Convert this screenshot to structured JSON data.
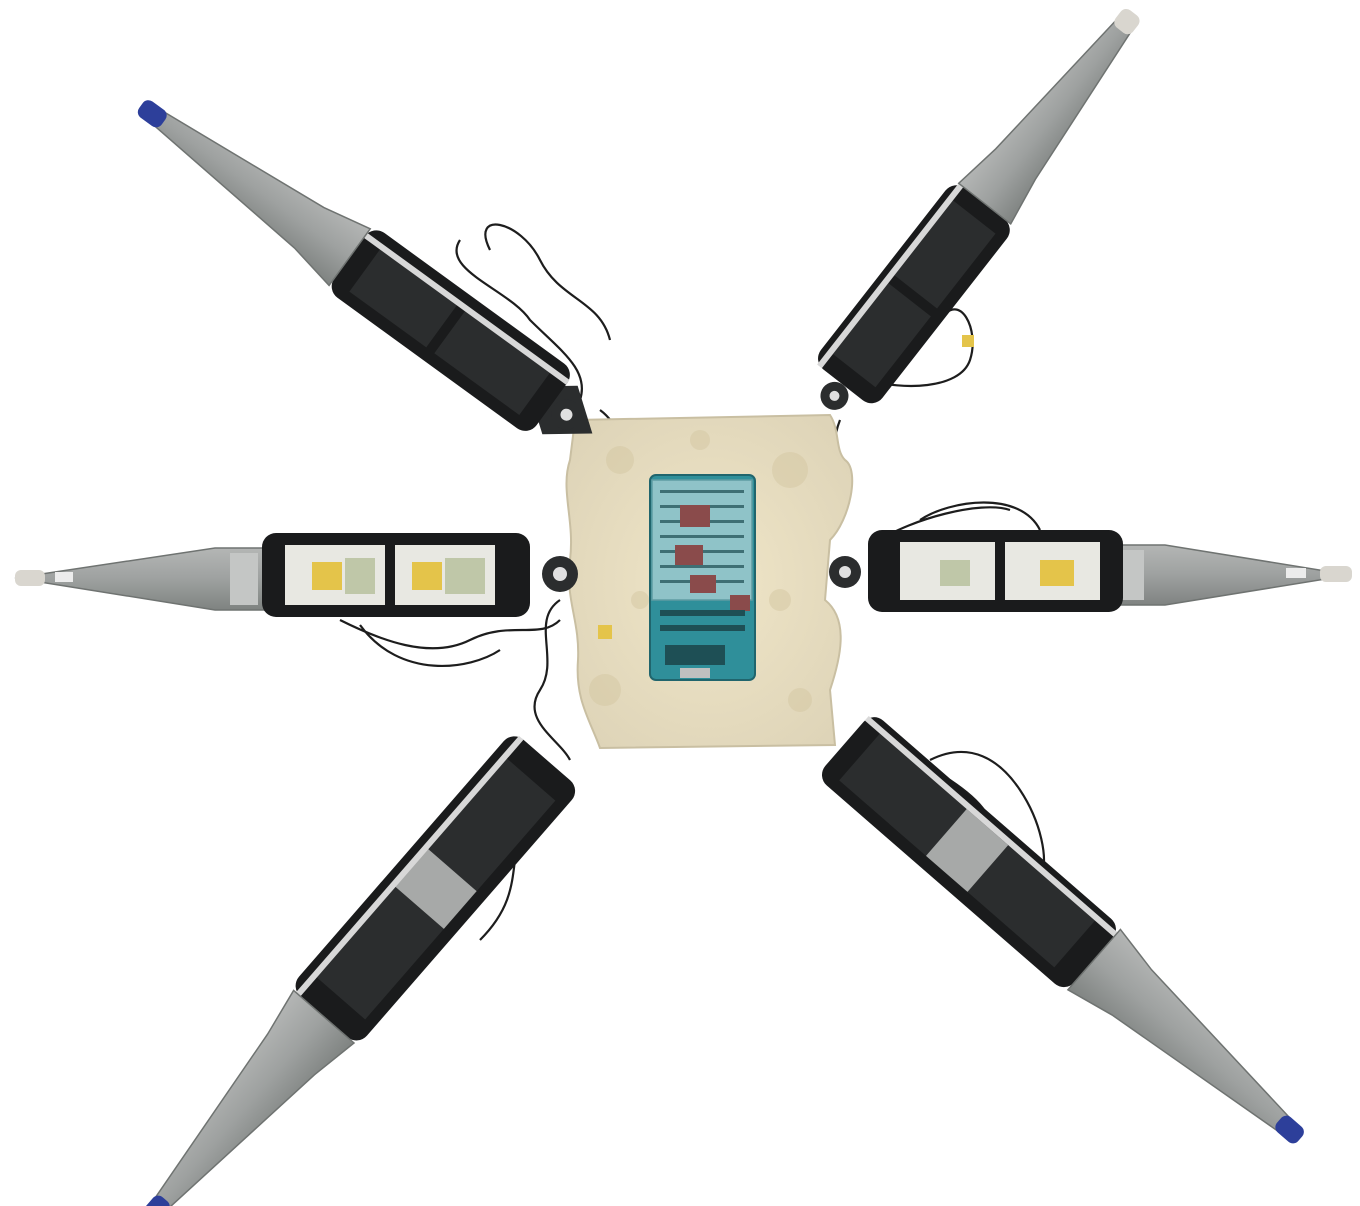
{
  "scene": {
    "background": "#ffffff",
    "subject_icon": "hexapod-robot-icon",
    "leg_count": 6,
    "colors": {
      "leg_shell": "#9ea1a0",
      "leg_shell_dark": "#7f8381",
      "servo": "#2b2d2e",
      "servo_frame": "#1a1b1c",
      "body_plate": "#e7dcc0",
      "circuit_board": "#2f8f9a",
      "proto_board": "#8fc3c8",
      "foot_tip_blue": "#2d3f9a",
      "foot_tip_clear": "#d9d6cf",
      "wire": "#1d1d1d",
      "wire_red": "#7a2a2a",
      "tape": "#e4c44a"
    }
  }
}
